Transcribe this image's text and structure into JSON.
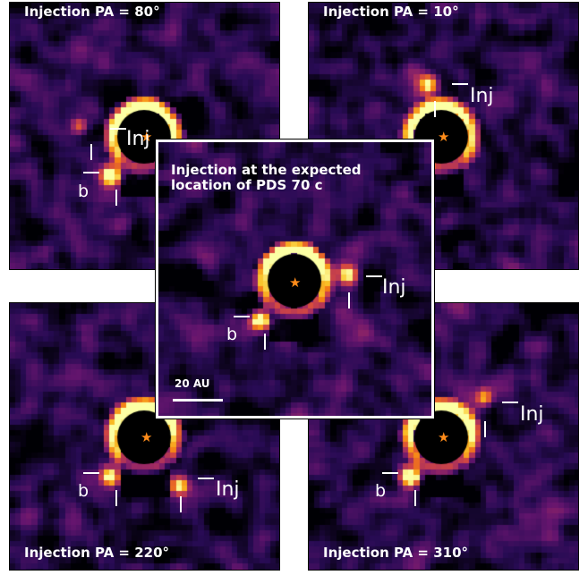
{
  "panels": {
    "pa80": {
      "title": "Injection PA = 80°",
      "inj_label": "Inj",
      "b_label": "b",
      "colormap": "inferno"
    },
    "pa10": {
      "title": "Injection PA = 10°",
      "inj_label": "Inj",
      "colormap": "inferno"
    },
    "pa220": {
      "title": "Injection PA = 220°",
      "inj_label": "Inj",
      "b_label": "b",
      "colormap": "inferno"
    },
    "pa310": {
      "title": "Injection PA = 310°",
      "inj_label": "Inj",
      "b_label": "b",
      "colormap": "inferno"
    },
    "center": {
      "title_line1": "Injection at the expected",
      "title_line2": "location of PDS 70 c",
      "inj_label": "Inj",
      "b_label": "b",
      "scalebar_label": "20 AU",
      "colormap": "inferno"
    }
  },
  "star_symbol": "★",
  "colors": {
    "star": "#ff8c1a",
    "mask": "#000000",
    "halo": "#fcffa4",
    "background": "#2d0f4f"
  }
}
